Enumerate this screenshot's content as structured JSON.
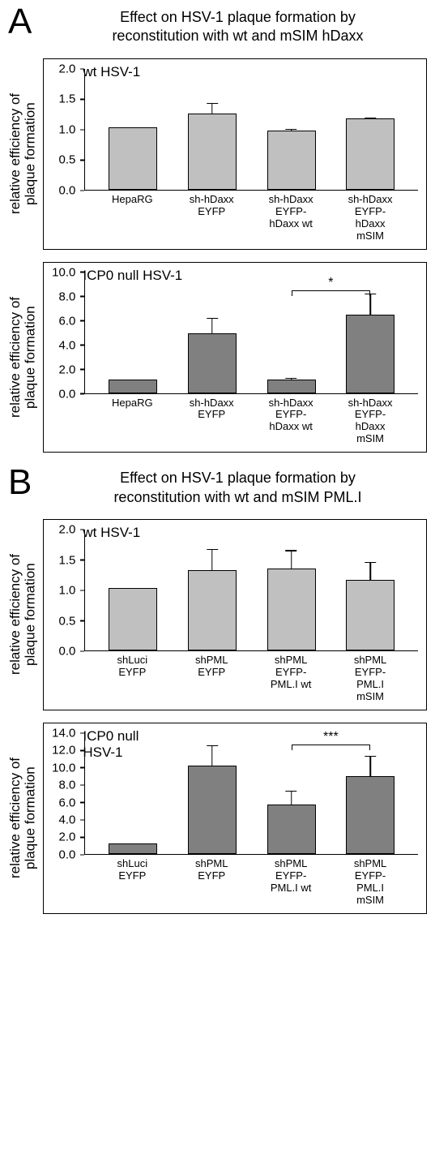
{
  "panels": [
    {
      "letter": "A",
      "title_line1": "Effect on HSV-1 plaque formation by",
      "title_line2": "reconstitution with wt and mSIM hDaxx",
      "charts": [
        {
          "inset": "wt HSV-1",
          "ylabel_line1": "relative efficiency of",
          "ylabel_line2": "plaque formation",
          "ymax": 2.0,
          "ytick_step": 0.5,
          "yticks": [
            "0.0",
            "0.5",
            "1.0",
            "1.5",
            "2.0"
          ],
          "bar_color": "#c0c0c0",
          "categories": [
            {
              "lines": [
                "HepaRG"
              ],
              "value": 1.0,
              "err_up": 0,
              "err_down": 0
            },
            {
              "lines": [
                "sh-hDaxx",
                "EYFP"
              ],
              "value": 1.23,
              "err_up": 0.2,
              "err_down": 0.1
            },
            {
              "lines": [
                "sh-hDaxx",
                "EYFP-",
                "hDaxx wt"
              ],
              "value": 0.94,
              "err_up": 0.06,
              "err_down": 0
            },
            {
              "lines": [
                "sh-hDaxx",
                "EYFP-",
                "hDaxx mSIM"
              ],
              "value": 1.14,
              "err_up": 0.05,
              "err_down": 0
            }
          ]
        },
        {
          "inset": "ICP0 null HSV-1",
          "ylabel_line1": "relative efficiency of",
          "ylabel_line2": "plaque formation",
          "ymax": 10.0,
          "ytick_step": 2.0,
          "yticks": [
            "0.0",
            "2.0",
            "4.0",
            "6.0",
            "8.0",
            "10.0"
          ],
          "bar_color": "#808080",
          "sig": {
            "from": 2,
            "to": 3,
            "label": "*",
            "y": 8.5,
            "leg": 6
          },
          "categories": [
            {
              "lines": [
                "HepaRG"
              ],
              "value": 1.0,
              "err_up": 0,
              "err_down": 0
            },
            {
              "lines": [
                "sh-hDaxx",
                "EYFP"
              ],
              "value": 4.8,
              "err_up": 1.4,
              "err_down": 1.4
            },
            {
              "lines": [
                "sh-hDaxx",
                "EYFP-",
                "hDaxx wt"
              ],
              "value": 0.94,
              "err_up": 0.3,
              "err_down": 0
            },
            {
              "lines": [
                "sh-hDaxx",
                "EYFP-",
                "hDaxx mSIM"
              ],
              "value": 6.3,
              "err_up": 1.9,
              "err_down": 1.9
            }
          ]
        }
      ]
    },
    {
      "letter": "B",
      "title_line1": "Effect on HSV-1 plaque formation by",
      "title_line2": "reconstitution with wt and mSIM PML.I",
      "charts": [
        {
          "inset": "wt HSV-1",
          "ylabel_line1": "relative efficiency of",
          "ylabel_line2": "plaque formation",
          "ymax": 2.0,
          "ytick_step": 0.5,
          "yticks": [
            "0.0",
            "0.5",
            "1.0",
            "1.5",
            "2.0"
          ],
          "bar_color": "#c0c0c0",
          "categories": [
            {
              "lines": [
                "shLuci",
                "EYFP"
              ],
              "value": 1.0,
              "err_up": 0,
              "err_down": 0
            },
            {
              "lines": [
                "shPML",
                "EYFP"
              ],
              "value": 1.29,
              "err_up": 0.38,
              "err_down": 0.38
            },
            {
              "lines": [
                "shPML",
                "EYFP-",
                "PML.I wt"
              ],
              "value": 1.32,
              "err_up": 0.33,
              "err_down": 0.33
            },
            {
              "lines": [
                "shPML",
                "EYFP-",
                "PML.I mSIM"
              ],
              "value": 1.13,
              "err_up": 0.33,
              "err_down": 0.33
            }
          ]
        },
        {
          "inset": "ICP0 null\nHSV-1",
          "ylabel_line1": "relative efficiency of",
          "ylabel_line2": "plaque formation",
          "ymax": 14.0,
          "ytick_step": 2.0,
          "yticks": [
            "0.0",
            "2.0",
            "4.0",
            "6.0",
            "8.0",
            "10.0",
            "12.0",
            "14.0"
          ],
          "bar_color": "#808080",
          "sig": {
            "from": 2,
            "to": 3,
            "label": "***",
            "y": 12.7,
            "leg": 6
          },
          "categories": [
            {
              "lines": [
                "shLuci",
                "EYFP"
              ],
              "value": 1.0,
              "err_up": 0,
              "err_down": 0
            },
            {
              "lines": [
                "shPML",
                "EYFP"
              ],
              "value": 10.0,
              "err_up": 2.5,
              "err_down": 2.5
            },
            {
              "lines": [
                "shPML",
                "EYFP-",
                "PML.I wt"
              ],
              "value": 5.5,
              "err_up": 1.8,
              "err_down": 1.8
            },
            {
              "lines": [
                "shPML",
                "EYFP-",
                "PML.I mSIM"
              ],
              "value": 8.8,
              "err_up": 2.5,
              "err_down": 2.5
            }
          ]
        }
      ]
    }
  ]
}
